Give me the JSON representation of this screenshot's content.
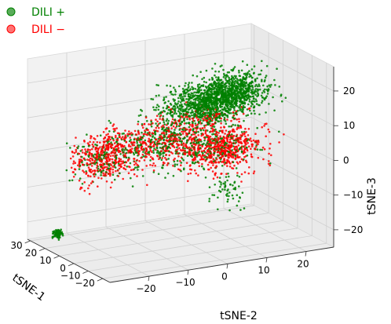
{
  "chart_data": {
    "type": "scatter",
    "projection": "3d",
    "title": "",
    "legend": {
      "placement": "top-left",
      "entries": [
        {
          "label": "DILI +",
          "color": "#008000"
        },
        {
          "label": "DILI −",
          "color": "#ff0000"
        }
      ]
    },
    "axes": {
      "x": {
        "label": "tSNE-1",
        "range": [
          -25,
          32
        ],
        "ticks": [
          -20,
          -10,
          0,
          10,
          20,
          30
        ]
      },
      "y": {
        "label": "tSNE-2",
        "range": [
          -30,
          27
        ],
        "ticks": [
          -20,
          -10,
          0,
          10,
          20
        ]
      },
      "z": {
        "label": "tSNE-3",
        "range": [
          -25,
          27
        ],
        "ticks": [
          -20,
          -10,
          0,
          10,
          20
        ]
      }
    },
    "grid": true,
    "series": [
      {
        "name": "DILI +",
        "color": "#008000",
        "clusters": [
          {
            "center": [
              -10,
              0,
              18
            ],
            "spread": [
              7,
              11,
              5
            ],
            "n": 900
          },
          {
            "center": [
              4,
              12,
              16
            ],
            "spread": [
              6,
              8,
              5
            ],
            "n": 700
          },
          {
            "center": [
              15,
              -2,
              2
            ],
            "spread": [
              8,
              12,
              6
            ],
            "n": 300
          },
          {
            "center": [
              0,
              -22,
              4
            ],
            "spread": [
              5,
              7,
              6
            ],
            "n": 160
          },
          {
            "center": [
              5,
              8,
              0
            ],
            "spread": [
              7,
              9,
              5
            ],
            "n": 180
          },
          {
            "center": [
              -20,
              2,
              -5
            ],
            "spread": [
              5,
              3,
              5
            ],
            "n": 60
          },
          {
            "center": [
              22,
              -26,
              -22
            ],
            "spread": [
              1,
              1,
              1
            ],
            "n": 90
          }
        ]
      },
      {
        "name": "DILI −",
        "color": "#ff0000",
        "clusters": [
          {
            "center": [
              0,
              -22,
              4
            ],
            "spread": [
              5,
              7,
              6
            ],
            "n": 420
          },
          {
            "center": [
              5,
              10,
              0
            ],
            "spread": [
              7,
              9,
              5
            ],
            "n": 560
          },
          {
            "center": [
              15,
              -2,
              2
            ],
            "spread": [
              8,
              11,
              6
            ],
            "n": 380
          },
          {
            "center": [
              -8,
              0,
              12
            ],
            "spread": [
              7,
              10,
              5
            ],
            "n": 120
          }
        ]
      }
    ]
  }
}
